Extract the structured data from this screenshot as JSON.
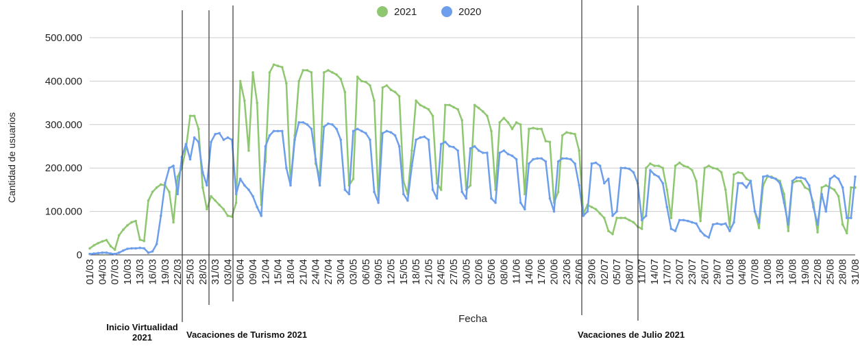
{
  "chart_data": {
    "type": "line",
    "x_label": "Fecha",
    "y_label": "Cantidad de usuarios",
    "categories": [
      "01/03",
      null,
      null,
      "04/03",
      null,
      null,
      "07/03",
      null,
      null,
      "10/03",
      null,
      null,
      "13/03",
      null,
      null,
      "16/03",
      null,
      null,
      "19/03",
      null,
      null,
      "22/03",
      null,
      null,
      "25/03",
      null,
      null,
      "28/03",
      null,
      null,
      "31/03",
      null,
      null,
      "03/04",
      null,
      null,
      "06/04",
      null,
      null,
      "09/04",
      null,
      null,
      "12/04",
      null,
      null,
      "15/04",
      null,
      null,
      "18/04",
      null,
      null,
      "21/04",
      null,
      null,
      "24/04",
      null,
      null,
      "27/04",
      null,
      null,
      "30/04",
      null,
      null,
      "03/05",
      null,
      null,
      "06/05",
      null,
      null,
      "09/05",
      null,
      null,
      "12/05",
      null,
      null,
      "15/05",
      null,
      null,
      "18/05",
      null,
      null,
      "21/05",
      null,
      null,
      "24/05",
      null,
      null,
      "27/05",
      null,
      null,
      "30/05",
      null,
      null,
      "02/06",
      null,
      null,
      "05/06",
      null,
      null,
      "08/06",
      null,
      null,
      "11/06",
      null,
      null,
      "14/06",
      null,
      null,
      "17/06",
      null,
      null,
      "20/06",
      null,
      null,
      "23/06",
      null,
      null,
      "26/06",
      null,
      null,
      "29/06",
      null,
      null,
      "02/07",
      null,
      null,
      "05/07",
      null,
      null,
      "08/07",
      null,
      null,
      "11/07",
      null,
      null,
      "14/07",
      null,
      null,
      "17/07",
      null,
      null,
      "20/07",
      null,
      null,
      "23/07",
      null,
      null,
      "26/07",
      null,
      null,
      "29/07",
      null,
      null,
      "01/08",
      null,
      null,
      "04/08",
      null,
      null,
      "07/08",
      null,
      null,
      "10/08",
      null,
      null,
      "13/08",
      null,
      null,
      "16/08",
      null,
      null,
      "19/08",
      null,
      null,
      "22/08",
      null,
      null,
      "25/08",
      null,
      null,
      "28/08",
      null,
      null,
      "31/08"
    ],
    "series": [
      {
        "name": "2021",
        "color": "#8fc771",
        "values": [
          15000,
          22000,
          27000,
          31000,
          34000,
          20000,
          12000,
          45000,
          58000,
          68000,
          75000,
          78000,
          35000,
          32000,
          125000,
          145000,
          155000,
          162000,
          160000,
          145000,
          75000,
          180000,
          200000,
          245000,
          320000,
          320000,
          290000,
          155000,
          105000,
          135000,
          125000,
          115000,
          105000,
          90000,
          88000,
          120000,
          400000,
          355000,
          240000,
          420000,
          350000,
          115000,
          215000,
          420000,
          438000,
          435000,
          432000,
          395000,
          165000,
          275000,
          400000,
          425000,
          425000,
          420000,
          210000,
          180000,
          420000,
          425000,
          420000,
          415000,
          405000,
          375000,
          160000,
          175000,
          410000,
          400000,
          398000,
          390000,
          355000,
          125000,
          385000,
          390000,
          380000,
          375000,
          365000,
          170000,
          140000,
          240000,
          355000,
          345000,
          340000,
          335000,
          320000,
          165000,
          150000,
          345000,
          345000,
          340000,
          335000,
          310000,
          150000,
          160000,
          345000,
          338000,
          330000,
          320000,
          285000,
          150000,
          305000,
          315000,
          305000,
          290000,
          305000,
          300000,
          140000,
          290000,
          292000,
          290000,
          290000,
          262000,
          260000,
          120000,
          145000,
          275000,
          282000,
          280000,
          278000,
          240000,
          95000,
          115000,
          110000,
          105000,
          95000,
          85000,
          55000,
          48000,
          85000,
          85000,
          85000,
          80000,
          75000,
          65000,
          60000,
          200000,
          210000,
          205000,
          205000,
          200000,
          150000,
          85000,
          205000,
          212000,
          205000,
          202000,
          195000,
          170000,
          78000,
          200000,
          205000,
          200000,
          198000,
          190000,
          150000,
          65000,
          185000,
          190000,
          188000,
          175000,
          170000,
          100000,
          62000,
          160000,
          180000,
          180000,
          175000,
          170000,
          140000,
          55000,
          165000,
          170000,
          170000,
          155000,
          150000,
          120000,
          52000,
          155000,
          160000,
          155000,
          150000,
          135000,
          70000,
          50000,
          155000,
          155000
        ]
      },
      {
        "name": "2020",
        "color": "#6d9eeb",
        "values": [
          2000,
          3000,
          4000,
          5000,
          5000,
          3000,
          2000,
          5000,
          10000,
          14000,
          15000,
          15000,
          16000,
          15000,
          5000,
          8000,
          25000,
          90000,
          165000,
          200000,
          205000,
          140000,
          225000,
          255000,
          220000,
          270000,
          260000,
          190000,
          160000,
          260000,
          278000,
          280000,
          265000,
          270000,
          265000,
          140000,
          175000,
          160000,
          150000,
          135000,
          110000,
          90000,
          250000,
          275000,
          285000,
          285000,
          285000,
          200000,
          160000,
          265000,
          305000,
          305000,
          300000,
          290000,
          220000,
          160000,
          295000,
          302000,
          300000,
          290000,
          265000,
          150000,
          140000,
          285000,
          290000,
          285000,
          280000,
          265000,
          145000,
          120000,
          280000,
          285000,
          282000,
          275000,
          250000,
          140000,
          125000,
          205000,
          265000,
          270000,
          272000,
          265000,
          150000,
          130000,
          255000,
          260000,
          250000,
          248000,
          240000,
          145000,
          130000,
          245000,
          250000,
          240000,
          235000,
          235000,
          130000,
          120000,
          235000,
          240000,
          232000,
          228000,
          220000,
          120000,
          105000,
          210000,
          220000,
          222000,
          222000,
          215000,
          130000,
          100000,
          215000,
          222000,
          222000,
          220000,
          210000,
          160000,
          90000,
          100000,
          210000,
          212000,
          205000,
          165000,
          175000,
          90000,
          100000,
          200000,
          200000,
          198000,
          190000,
          165000,
          80000,
          90000,
          195000,
          185000,
          180000,
          165000,
          110000,
          60000,
          55000,
          80000,
          80000,
          78000,
          75000,
          72000,
          55000,
          45000,
          40000,
          70000,
          72000,
          70000,
          72000,
          55000,
          75000,
          165000,
          165000,
          155000,
          170000,
          100000,
          75000,
          180000,
          182000,
          178000,
          175000,
          165000,
          120000,
          70000,
          170000,
          178000,
          178000,
          175000,
          160000,
          110000,
          70000,
          140000,
          100000,
          175000,
          182000,
          175000,
          155000,
          85000,
          85000,
          180000
        ]
      }
    ],
    "ylim": [
      0,
      500000
    ],
    "yticks": [
      0,
      {
        "value": 100000,
        "label": "100.000"
      },
      {
        "value": 200000,
        "label": "200.000"
      },
      {
        "value": 300000,
        "label": "300.000"
      },
      {
        "value": 400000,
        "label": "400.000"
      },
      {
        "value": 500000,
        "label": "500.000"
      }
    ],
    "grid": true,
    "legend": "top",
    "annotations": [
      "Inicio Virtualidad 2021",
      "Vacaciones de Turismo 2021",
      "Vacaciones de Julio 2021"
    ]
  }
}
